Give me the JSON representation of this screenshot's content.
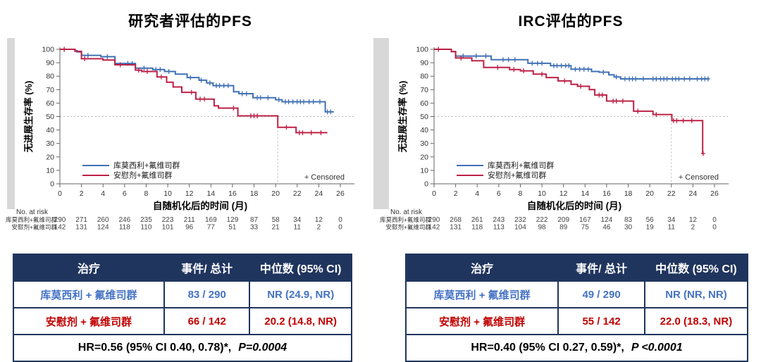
{
  "panels": [
    {
      "title": "研究者评估的PFS",
      "summary_table": {
        "header_bg": "#20355e",
        "border_color": "#20355e",
        "headers": [
          "治疗",
          "事件/ 总计",
          "中位数 (95% CI)"
        ],
        "rows": [
          {
            "treatment": "库莫西利 + 氟维司群",
            "events": "83 / 290",
            "median": "NR (24.9, NR)",
            "color": "#4472c4"
          },
          {
            "treatment": "安慰剂 + 氟维司群",
            "events": "66 / 142",
            "median": "20.2 (14.8, NR)",
            "color": "#c00000"
          }
        ],
        "footer_hr": "HR=0.56 (95% CI 0.40, 0.78)*,",
        "footer_p": "P=0.0004"
      }
    },
    {
      "title": "IRC评估的PFS",
      "summary_table": {
        "header_bg": "#20355e",
        "border_color": "#20355e",
        "headers": [
          "治疗",
          "事件/ 总计",
          "中位数 (95% CI)"
        ],
        "rows": [
          {
            "treatment": "库莫西利 + 氟维司群",
            "events": "49 / 290",
            "median": "NR (NR, NR)",
            "color": "#4472c4"
          },
          {
            "treatment": "安慰剂 + 氟维司群",
            "events": "55 / 142",
            "median": "22.0 (18.3, NR)",
            "color": "#c00000"
          }
        ],
        "footer_hr": "HR=0.40 (95% CI 0.27, 0.59)*,",
        "footer_p": "P <0.0001"
      }
    }
  ],
  "chart_data": [
    {
      "type": "line",
      "subtype": "kaplan-meier-step",
      "title": "研究者评估的PFS",
      "xlabel": "自随机化后的时间 (月)",
      "ylabel": "无进展生存率 (%)",
      "xlim": [
        0,
        26
      ],
      "ylim": [
        0,
        100
      ],
      "xtick_step": 2,
      "ytick_step": 10,
      "grid": false,
      "legend_position": "lower-left",
      "reference_line_y": 50,
      "median_vline_x": 20.2,
      "censored_label": "+ Censored",
      "series": [
        {
          "name": "库莫西利+氟维司群",
          "color": "#4070b4",
          "end": 25.4,
          "steps": [
            [
              0,
              100
            ],
            [
              1.4,
              99
            ],
            [
              1.6,
              98
            ],
            [
              2.0,
              95.5
            ],
            [
              3.8,
              94.5
            ],
            [
              5.1,
              89.5
            ],
            [
              7.0,
              86
            ],
            [
              8.6,
              85
            ],
            [
              9.7,
              83.5
            ],
            [
              10.7,
              81.5
            ],
            [
              11.8,
              79
            ],
            [
              12.9,
              77
            ],
            [
              13.6,
              75
            ],
            [
              14.2,
              73
            ],
            [
              16.1,
              68.5
            ],
            [
              16.6,
              67
            ],
            [
              17.9,
              64
            ],
            [
              20.0,
              62.5
            ],
            [
              20.6,
              61
            ],
            [
              24.6,
              53.5
            ]
          ],
          "censors": [
            [
              0.4,
              100
            ],
            [
              2.6,
              95.5
            ],
            [
              4.4,
              94.5
            ],
            [
              6.3,
              89.5
            ],
            [
              6.7,
              89.5
            ],
            [
              7.8,
              86
            ],
            [
              8.9,
              85
            ],
            [
              9.3,
              85
            ],
            [
              10.1,
              83.5
            ],
            [
              12.1,
              79
            ],
            [
              13.1,
              77
            ],
            [
              13.9,
              75
            ],
            [
              14.5,
              73
            ],
            [
              14.8,
              73
            ],
            [
              15.2,
              73
            ],
            [
              15.6,
              73
            ],
            [
              16.9,
              67
            ],
            [
              17.3,
              67
            ],
            [
              18.3,
              64
            ],
            [
              18.6,
              64
            ],
            [
              19.3,
              64
            ],
            [
              20.3,
              62.5
            ],
            [
              20.9,
              61
            ],
            [
              21.2,
              61
            ],
            [
              21.6,
              61
            ],
            [
              22.0,
              61
            ],
            [
              22.3,
              61
            ],
            [
              22.6,
              61
            ],
            [
              23.1,
              61
            ],
            [
              23.5,
              61
            ],
            [
              24.1,
              61
            ],
            [
              24.8,
              53.5
            ],
            [
              25.1,
              53.5
            ]
          ]
        },
        {
          "name": "安慰剂+氟维司群",
          "color": "#bd2146",
          "end": 24.8,
          "steps": [
            [
              0,
              100
            ],
            [
              1.4,
              98.5
            ],
            [
              2.0,
              93
            ],
            [
              4.0,
              92
            ],
            [
              5.1,
              88.5
            ],
            [
              7.0,
              84.5
            ],
            [
              7.6,
              83.5
            ],
            [
              9.0,
              79.5
            ],
            [
              9.9,
              75.5
            ],
            [
              10.5,
              72
            ],
            [
              11.3,
              68
            ],
            [
              12.6,
              63
            ],
            [
              14.3,
              58
            ],
            [
              14.7,
              56.3
            ],
            [
              16.5,
              50.5
            ],
            [
              20.2,
              42
            ],
            [
              21.9,
              38
            ]
          ],
          "censors": [
            [
              0.4,
              100
            ],
            [
              2.3,
              93
            ],
            [
              5.6,
              88.5
            ],
            [
              7.3,
              84.5
            ],
            [
              8.1,
              83.5
            ],
            [
              9.4,
              79.5
            ],
            [
              12.2,
              68
            ],
            [
              13.0,
              63
            ],
            [
              13.4,
              63
            ],
            [
              16.1,
              56.3
            ],
            [
              17.7,
              50.5
            ],
            [
              18.0,
              50.5
            ],
            [
              18.3,
              50.5
            ],
            [
              21.0,
              42
            ],
            [
              22.2,
              38
            ],
            [
              22.5,
              38
            ],
            [
              23.3,
              38
            ],
            [
              24.2,
              38
            ]
          ]
        }
      ],
      "risk_table": {
        "label": "No. at risk",
        "time_points": [
          0,
          2,
          4,
          6,
          8,
          10,
          12,
          14,
          16,
          18,
          20,
          22,
          24,
          26
        ],
        "rows": [
          {
            "name": "库莫西利+氟维司群",
            "values": [
              290,
              271,
              260,
              246,
              235,
              223,
              211,
              169,
              129,
              87,
              58,
              34,
              12,
              0
            ]
          },
          {
            "name": "安慰剂+氟维司群",
            "values": [
              142,
              131,
              124,
              118,
              110,
              101,
              96,
              77,
              51,
              33,
              21,
              11,
              2,
              0
            ]
          }
        ]
      }
    },
    {
      "type": "line",
      "subtype": "kaplan-meier-step",
      "title": "IRC评估的PFS",
      "xlabel": "自随机化后的时间 (月)",
      "ylabel": "无进展生存率 (%)",
      "xlim": [
        0,
        26
      ],
      "ylim": [
        0,
        100
      ],
      "xtick_step": 2,
      "ytick_step": 10,
      "grid": false,
      "legend_position": "lower-left",
      "reference_line_y": 50,
      "median_vline_x": 22.0,
      "censored_label": "+ Censored",
      "series": [
        {
          "name": "库莫西利+氟维司群",
          "color": "#4070b4",
          "end": 25.5,
          "steps": [
            [
              0,
              100
            ],
            [
              1.6,
              98.3
            ],
            [
              2.0,
              95
            ],
            [
              5.3,
              92.3
            ],
            [
              8.7,
              89.6
            ],
            [
              10.8,
              87.8
            ],
            [
              12.7,
              85.2
            ],
            [
              14.6,
              83.5
            ],
            [
              15.3,
              83
            ],
            [
              16.2,
              81
            ],
            [
              16.7,
              79.5
            ],
            [
              17.3,
              78
            ]
          ],
          "censors": [
            [
              0.4,
              100
            ],
            [
              2.7,
              95
            ],
            [
              3.9,
              95
            ],
            [
              4.8,
              95
            ],
            [
              6.4,
              92.3
            ],
            [
              6.9,
              92.3
            ],
            [
              7.5,
              92.3
            ],
            [
              9.1,
              89.6
            ],
            [
              9.6,
              89.6
            ],
            [
              10.0,
              89.6
            ],
            [
              11.1,
              87.8
            ],
            [
              11.4,
              87.8
            ],
            [
              11.8,
              87.8
            ],
            [
              12.2,
              87.8
            ],
            [
              12.5,
              87.8
            ],
            [
              13.1,
              85.2
            ],
            [
              13.5,
              85.2
            ],
            [
              13.9,
              85.2
            ],
            [
              14.3,
              85.2
            ],
            [
              15.7,
              83
            ],
            [
              16.9,
              79.5
            ],
            [
              17.7,
              78
            ],
            [
              18.1,
              78
            ],
            [
              18.4,
              78
            ],
            [
              18.7,
              78
            ],
            [
              19.4,
              78
            ],
            [
              20.3,
              78
            ],
            [
              20.6,
              78
            ],
            [
              21.0,
              78
            ],
            [
              21.3,
              78
            ],
            [
              21.6,
              78
            ],
            [
              22.1,
              78
            ],
            [
              22.4,
              78
            ],
            [
              22.7,
              78
            ],
            [
              23.2,
              78
            ],
            [
              23.7,
              78
            ],
            [
              24.4,
              78
            ],
            [
              24.8,
              78
            ],
            [
              25.1,
              78
            ],
            [
              25.4,
              78
            ]
          ]
        },
        {
          "name": "安慰剂+氟维司群",
          "color": "#bd2146",
          "end": 25.0,
          "steps": [
            [
              0,
              100
            ],
            [
              1.6,
              98.3
            ],
            [
              2.0,
              93.5
            ],
            [
              3.5,
              91.5
            ],
            [
              4.6,
              86.5
            ],
            [
              7.0,
              85
            ],
            [
              8.0,
              84
            ],
            [
              9.2,
              81.5
            ],
            [
              10.4,
              79
            ],
            [
              11.5,
              76.5
            ],
            [
              12.7,
              74
            ],
            [
              13.3,
              72.5
            ],
            [
              14.4,
              70
            ],
            [
              14.9,
              66
            ],
            [
              16.0,
              61.5
            ],
            [
              18.5,
              54
            ],
            [
              20.3,
              51.5
            ],
            [
              22.05,
              47
            ],
            [
              24.9,
              22.5
            ]
          ],
          "censors": [
            [
              0.4,
              100
            ],
            [
              2.5,
              93.5
            ],
            [
              5.9,
              86.5
            ],
            [
              7.4,
              85
            ],
            [
              8.3,
              84
            ],
            [
              10.0,
              81.5
            ],
            [
              12.1,
              76.5
            ],
            [
              13.6,
              72.5
            ],
            [
              15.3,
              66
            ],
            [
              15.6,
              66
            ],
            [
              16.6,
              61.5
            ],
            [
              16.9,
              61.5
            ],
            [
              17.5,
              61.5
            ],
            [
              18.9,
              54
            ],
            [
              20.6,
              51.5
            ],
            [
              22.2,
              47
            ],
            [
              22.5,
              47
            ],
            [
              23.1,
              47
            ],
            [
              23.9,
              47
            ],
            [
              24.95,
              22.5
            ]
          ]
        }
      ],
      "risk_table": {
        "label": "No. at risk",
        "time_points": [
          0,
          2,
          4,
          6,
          8,
          10,
          12,
          14,
          16,
          18,
          20,
          22,
          24,
          26
        ],
        "rows": [
          {
            "name": "库莫西利+氟维司群",
            "values": [
              290,
              268,
              261,
              243,
              232,
              222,
              209,
              167,
              124,
              83,
              56,
              34,
              12,
              0
            ]
          },
          {
            "name": "安慰剂+氟维司群",
            "values": [
              142,
              131,
              118,
              113,
              104,
              98,
              89,
              75,
              46,
              30,
              19,
              11,
              2,
              0
            ]
          }
        ]
      }
    }
  ]
}
